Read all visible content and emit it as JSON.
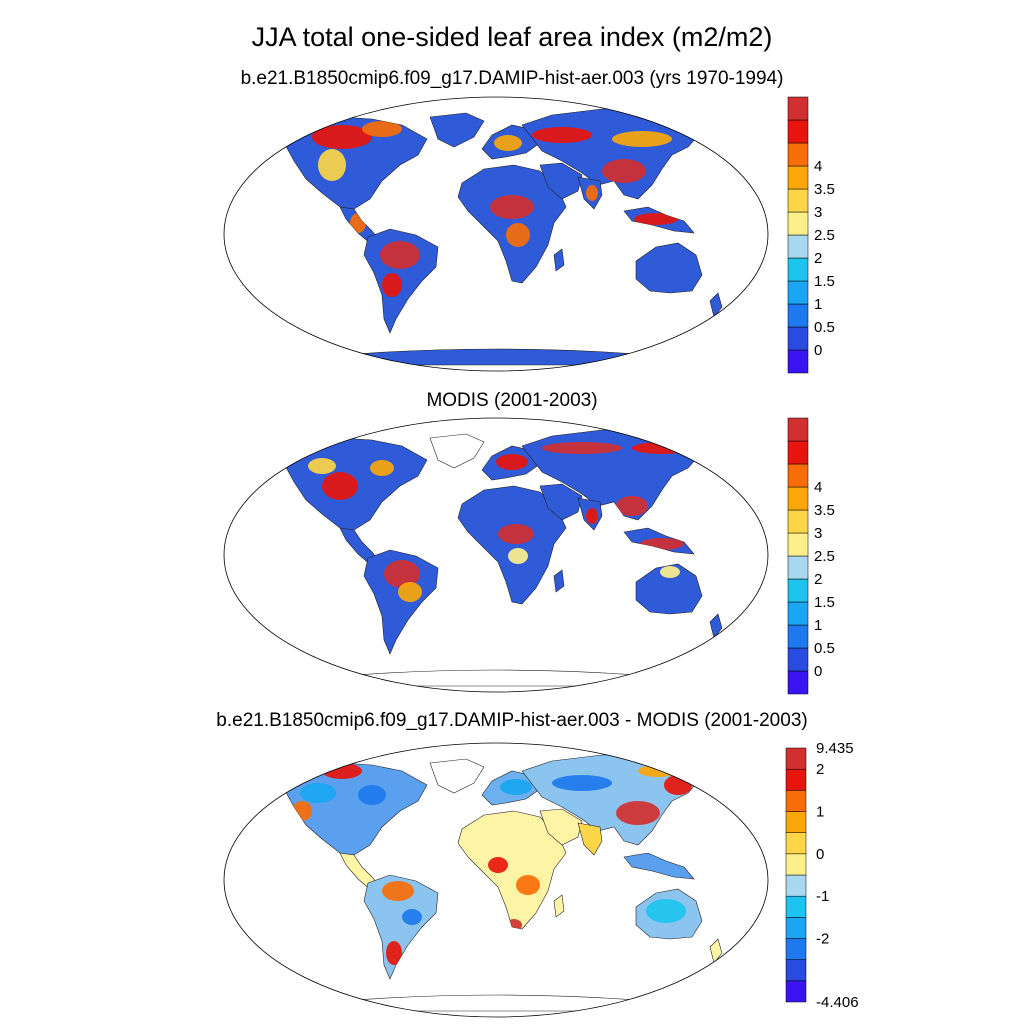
{
  "title": "JJA total one-sided leaf area index (m2/m2)",
  "panels": [
    {
      "title": "b.e21.B1850cmip6.f09_g17.DAMIP-hist-aer.003 (yrs 1970-1994)",
      "colorbar": {
        "colors": [
          "#3a14f0",
          "#2a4be0",
          "#1e78ee",
          "#1aa6f2",
          "#1cc4ef",
          "#a8d8f0",
          "#fdf08a",
          "#fdd548",
          "#fba70a",
          "#f86d08",
          "#e8150c",
          "#d13030"
        ],
        "labels": [
          "0",
          "0.5",
          "1",
          "1.5",
          "2",
          "2.5",
          "3",
          "3.5",
          "4"
        ]
      },
      "ocean_color": "#ffffff",
      "land_base": "#2f5bd8",
      "antarctica": "#2f5bd8"
    },
    {
      "title": "MODIS (2001-2003)",
      "colorbar": {
        "colors": [
          "#3a14f0",
          "#2a4be0",
          "#1e78ee",
          "#1aa6f2",
          "#1cc4ef",
          "#a8d8f0",
          "#fdf08a",
          "#fdd548",
          "#fba70a",
          "#f86d08",
          "#e8150c",
          "#d13030"
        ],
        "labels": [
          "0",
          "0.5",
          "1",
          "1.5",
          "2",
          "2.5",
          "3",
          "3.5",
          "4"
        ]
      },
      "ocean_color": "#ffffff",
      "land_base": "#2f5bd8",
      "antarctica": "#ffffff"
    },
    {
      "title": "b.e21.B1850cmip6.f09_g17.DAMIP-hist-aer.003 - MODIS (2001-2003)",
      "colorbar": {
        "colors": [
          "#3a14f0",
          "#2a4be0",
          "#1e78ee",
          "#1aa6f2",
          "#1cc4ef",
          "#a8d8f0",
          "#fdf08a",
          "#fdd548",
          "#fba70a",
          "#f86d08",
          "#e8150c",
          "#d13030"
        ],
        "labels": [
          "-4.406",
          "-2",
          "-1",
          "0",
          "1",
          "2",
          "9.435"
        ]
      },
      "ocean_color": "#ffffff",
      "land_base": "#fdf4a6",
      "antarctica": "#ffffff"
    }
  ]
}
